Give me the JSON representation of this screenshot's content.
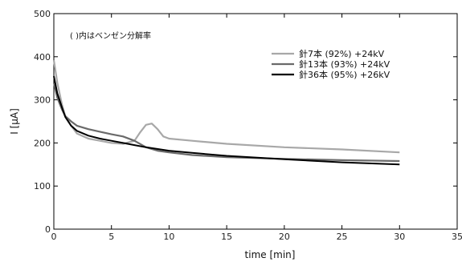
{
  "chart_data": {
    "type": "line",
    "xlabel": "time [min]",
    "ylabel": "I [μA]",
    "xlim": [
      0,
      35
    ],
    "ylim": [
      0,
      500
    ],
    "xticks": [
      0,
      5,
      10,
      15,
      20,
      25,
      30,
      35
    ],
    "yticks": [
      0,
      100,
      200,
      300,
      400,
      500
    ],
    "annotation": "( )内はベンゼン分解率",
    "legend_position": "top-right",
    "grid": false,
    "series": [
      {
        "name": "針7本 (92%) +24kV",
        "color": "#a8a8a8",
        "x": [
          0,
          0.3,
          0.7,
          1,
          1.5,
          2,
          3,
          4,
          5,
          6,
          7,
          7.5,
          8,
          8.5,
          9,
          9.5,
          10,
          12,
          15,
          20,
          25,
          30
        ],
        "y": [
          392,
          340,
          290,
          262,
          240,
          222,
          210,
          205,
          200,
          198,
          205,
          225,
          242,
          245,
          232,
          215,
          210,
          205,
          198,
          190,
          185,
          178
        ]
      },
      {
        "name": "針13本 (93%) +24kV",
        "color": "#6a6a6a",
        "x": [
          0,
          0.3,
          0.7,
          1,
          1.5,
          2,
          3,
          4,
          5,
          6,
          7,
          8,
          9,
          10,
          12,
          15,
          20,
          25,
          30
        ],
        "y": [
          340,
          305,
          278,
          262,
          250,
          240,
          232,
          226,
          220,
          215,
          205,
          190,
          182,
          178,
          172,
          167,
          163,
          160,
          158
        ]
      },
      {
        "name": "針36本 (95%) +26kV",
        "color": "#000000",
        "x": [
          0,
          0.3,
          0.7,
          1,
          1.5,
          2,
          3,
          4,
          5,
          6,
          7,
          8,
          10,
          12,
          15,
          20,
          25,
          30
        ],
        "y": [
          355,
          315,
          283,
          260,
          240,
          228,
          217,
          210,
          205,
          200,
          195,
          190,
          182,
          177,
          170,
          162,
          155,
          150
        ]
      }
    ]
  }
}
